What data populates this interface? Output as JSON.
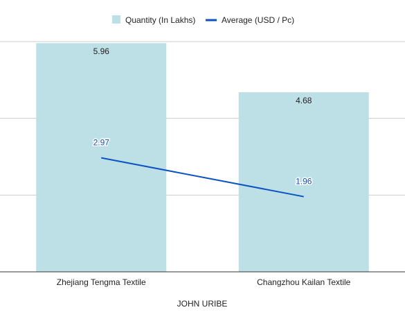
{
  "chart_data": {
    "type": "bar",
    "title": "",
    "xlabel": "JOHN URIBE",
    "ylabel": "",
    "categories": [
      "Zhejiang Tengma Textile",
      "Changzhou Kailan Textile"
    ],
    "series": [
      {
        "name": "Quantity (In Lakhs)",
        "type": "bar",
        "values": [
          5.96,
          4.68
        ],
        "color": "#bddfe6"
      },
      {
        "name": "Average (USD / Pc)",
        "type": "line",
        "values": [
          2.97,
          1.96
        ],
        "color": "#0b52c2"
      }
    ],
    "ylim": [
      0,
      6
    ],
    "grid": true,
    "legend_position": "top-center",
    "data_labels": true
  }
}
